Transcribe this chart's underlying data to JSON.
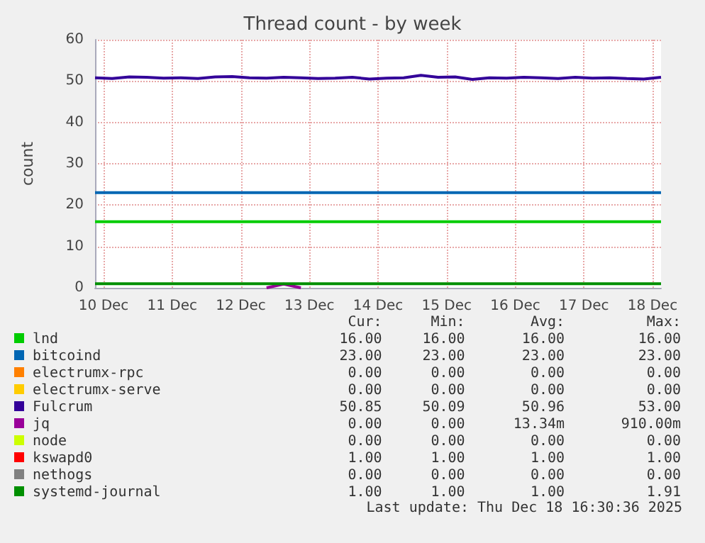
{
  "chart_data": {
    "type": "line",
    "title": "Thread count - by week",
    "ylabel": "count",
    "x": [
      "2025-12-10T09:00",
      "2025-12-10T15:00",
      "2025-12-10T21:00",
      "2025-12-11T03:00",
      "2025-12-11T09:00",
      "2025-12-11T15:00",
      "2025-12-11T21:00",
      "2025-12-12T03:00",
      "2025-12-12T09:00",
      "2025-12-12T15:00",
      "2025-12-12T21:00",
      "2025-12-13T03:00",
      "2025-12-13T09:00",
      "2025-12-13T15:00",
      "2025-12-13T21:00",
      "2025-12-14T03:00",
      "2025-12-14T09:00",
      "2025-12-14T15:00",
      "2025-12-14T21:00",
      "2025-12-15T03:00",
      "2025-12-15T09:00",
      "2025-12-15T15:00",
      "2025-12-15T21:00",
      "2025-12-16T03:00",
      "2025-12-16T09:00",
      "2025-12-16T15:00",
      "2025-12-16T21:00",
      "2025-12-17T03:00",
      "2025-12-17T09:00",
      "2025-12-17T15:00",
      "2025-12-17T21:00",
      "2025-12-18T03:00",
      "2025-12-18T09:00",
      "2025-12-18T15:00"
    ],
    "xlim": [
      "2025-12-10T09:00",
      "2025-12-18T15:00"
    ],
    "xticks": [
      {
        "value": "2025-12-10T12:00",
        "label": "10 Dec"
      },
      {
        "value": "2025-12-11T12:00",
        "label": "11 Dec"
      },
      {
        "value": "2025-12-12T12:00",
        "label": "12 Dec"
      },
      {
        "value": "2025-12-13T12:00",
        "label": "13 Dec"
      },
      {
        "value": "2025-12-14T12:00",
        "label": "14 Dec"
      },
      {
        "value": "2025-12-15T12:00",
        "label": "15 Dec"
      },
      {
        "value": "2025-12-16T12:00",
        "label": "16 Dec"
      },
      {
        "value": "2025-12-17T12:00",
        "label": "17 Dec"
      },
      {
        "value": "2025-12-18T12:00",
        "label": "18 Dec"
      }
    ],
    "ylim": [
      0,
      60
    ],
    "yticks": [
      0,
      10,
      20,
      30,
      40,
      50,
      60
    ],
    "grid": true,
    "legend": "bottom",
    "marker": "none",
    "series": [
      {
        "name": "lnd",
        "color": "#00cc00",
        "values": [
          16,
          16,
          16,
          16,
          16,
          16,
          16,
          16,
          16,
          16,
          16,
          16,
          16,
          16,
          16,
          16,
          16,
          16,
          16,
          16,
          16,
          16,
          16,
          16,
          16,
          16,
          16,
          16,
          16,
          16,
          16,
          16,
          16,
          16
        ]
      },
      {
        "name": "bitcoind",
        "color": "#0066b3",
        "values": [
          23,
          23,
          23,
          23,
          23,
          23,
          23,
          23,
          23,
          23,
          23,
          23,
          23,
          23,
          23,
          23,
          23,
          23,
          23,
          23,
          23,
          23,
          23,
          23,
          23,
          23,
          23,
          23,
          23,
          23,
          23,
          23,
          23,
          23
        ]
      },
      {
        "name": "electrumx-rpc",
        "color": "#ff8000",
        "values": [
          null,
          null,
          null,
          null,
          null,
          null,
          null,
          null,
          null,
          null,
          null,
          null,
          null,
          null,
          null,
          null,
          null,
          null,
          null,
          null,
          null,
          null,
          null,
          null,
          null,
          null,
          null,
          null,
          null,
          null,
          null,
          null,
          null,
          null
        ]
      },
      {
        "name": "electrumx-serve",
        "color": "#ffcc00",
        "values": [
          null,
          null,
          null,
          null,
          null,
          null,
          null,
          null,
          null,
          null,
          null,
          null,
          null,
          null,
          null,
          null,
          null,
          null,
          null,
          null,
          null,
          null,
          null,
          null,
          null,
          null,
          null,
          null,
          null,
          null,
          null,
          null,
          null,
          null
        ]
      },
      {
        "name": "Fulcrum",
        "color": "#330099",
        "values": [
          50.8,
          50.6,
          51.0,
          50.9,
          50.7,
          50.8,
          50.6,
          51.0,
          51.1,
          50.8,
          50.7,
          50.9,
          50.8,
          50.6,
          50.7,
          50.9,
          50.5,
          50.7,
          50.8,
          51.4,
          50.9,
          51.0,
          50.4,
          50.8,
          50.7,
          50.9,
          50.8,
          50.6,
          50.9,
          50.7,
          50.8,
          50.6,
          50.5,
          50.9
        ]
      },
      {
        "name": "jq",
        "color": "#990099",
        "values": [
          null,
          null,
          null,
          null,
          null,
          null,
          null,
          null,
          null,
          null,
          0,
          0.9,
          0,
          null,
          null,
          null,
          null,
          null,
          null,
          null,
          null,
          null,
          null,
          null,
          null,
          null,
          null,
          null,
          null,
          null,
          null,
          null,
          null,
          null
        ]
      },
      {
        "name": "node",
        "color": "#ccff00",
        "values": [
          null,
          null,
          null,
          null,
          null,
          null,
          null,
          null,
          null,
          null,
          null,
          null,
          null,
          null,
          null,
          null,
          null,
          null,
          null,
          null,
          null,
          null,
          null,
          null,
          null,
          null,
          null,
          null,
          null,
          null,
          null,
          null,
          null,
          null
        ]
      },
      {
        "name": "kswapd0",
        "color": "#ff0000",
        "values": [
          null,
          null,
          null,
          null,
          null,
          null,
          null,
          null,
          null,
          null,
          null,
          null,
          null,
          null,
          null,
          null,
          null,
          null,
          null,
          null,
          null,
          null,
          null,
          null,
          null,
          null,
          null,
          null,
          null,
          null,
          null,
          null,
          null,
          null
        ]
      },
      {
        "name": "nethogs",
        "color": "#808080",
        "values": [
          null,
          null,
          null,
          null,
          null,
          null,
          null,
          null,
          null,
          null,
          null,
          null,
          null,
          null,
          null,
          null,
          null,
          null,
          null,
          null,
          null,
          null,
          null,
          null,
          null,
          null,
          null,
          null,
          null,
          null,
          null,
          null,
          null,
          null
        ]
      },
      {
        "name": "systemd-journal",
        "color": "#008f00",
        "values": [
          1,
          1,
          1,
          1,
          1,
          1,
          1,
          1,
          1,
          1,
          1,
          1,
          1,
          1,
          1,
          1,
          1,
          1,
          1,
          1,
          1,
          1,
          1,
          1,
          1,
          1,
          1,
          1,
          1,
          1,
          1,
          1,
          1,
          1
        ]
      }
    ],
    "annotations": [
      "Cur:",
      "Min:",
      "Avg:",
      "Max:",
      "16.00",
      "16.00",
      "16.00",
      "16.00",
      "23.00",
      "23.00",
      "23.00",
      "23.00",
      "0.00",
      "0.00",
      "0.00",
      "0.00",
      "0.00",
      "0.00",
      "0.00",
      "0.00",
      "50.85",
      "50.09",
      "50.96",
      "53.00",
      "0.00",
      "0.00",
      "13.34m",
      "910.00m",
      "0.00",
      "0.00",
      "0.00",
      "0.00",
      "1.00",
      "1.00",
      "1.00",
      "1.00",
      "0.00",
      "0.00",
      "0.00",
      "0.00",
      "1.00",
      "1.00",
      "1.00",
      "1.91",
      "Last update: Thu Dec 18 16:30:36 2025"
    ]
  }
}
